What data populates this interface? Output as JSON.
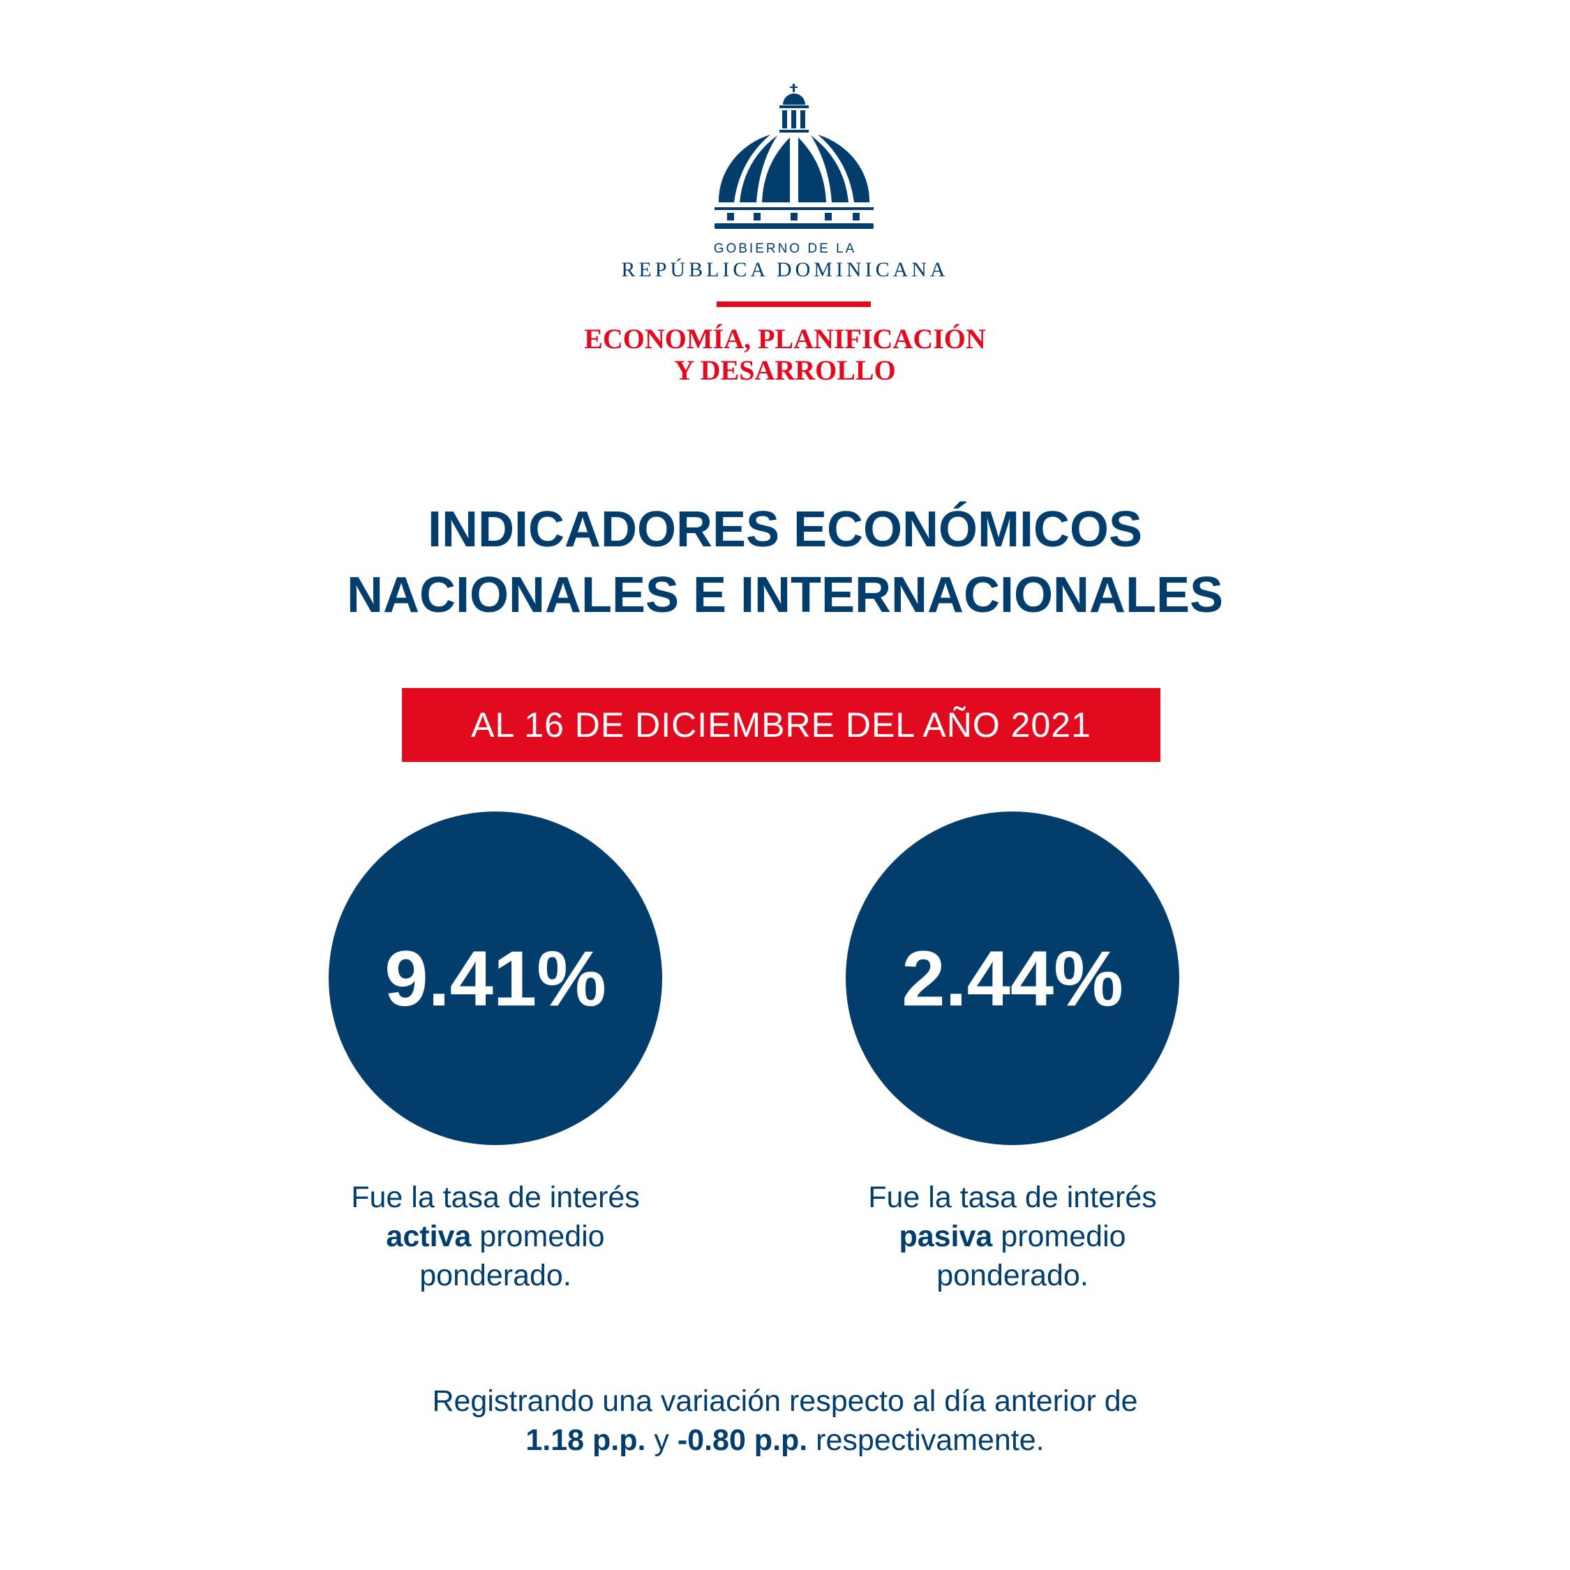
{
  "logo": {
    "line1": "GOBIERNO DE LA",
    "line2": "REPÚBLICA DOMINICANA",
    "ministry_line1": "ECONOMÍA, PLANIFICACIÓN",
    "ministry_line2": "Y DESARROLLO"
  },
  "title": {
    "line1": "INDICADORES ECONÓMICOS",
    "line2": "NACIONALES E INTERNACIONALES"
  },
  "date_banner": "AL 16 DE DICIEMBRE DEL AÑO 2021",
  "indicators": [
    {
      "value": "9.41%",
      "caption_pre": "Fue la tasa de interés",
      "caption_bold": "activa",
      "caption_mid": " promedio",
      "caption_post": "ponderado."
    },
    {
      "value": "2.44%",
      "caption_pre": "Fue la tasa de interés",
      "caption_bold": "pasiva",
      "caption_mid": " promedio",
      "caption_post": "ponderado."
    }
  ],
  "footer": {
    "line1": "Registrando una variación respecto al día anterior de",
    "v1": "1.18 p.p.",
    "and": " y ",
    "v2": "-0.80 p.p.",
    "end": " respectivamente."
  },
  "colors": {
    "navy": "#023d6b",
    "red": "#e10a1f"
  }
}
